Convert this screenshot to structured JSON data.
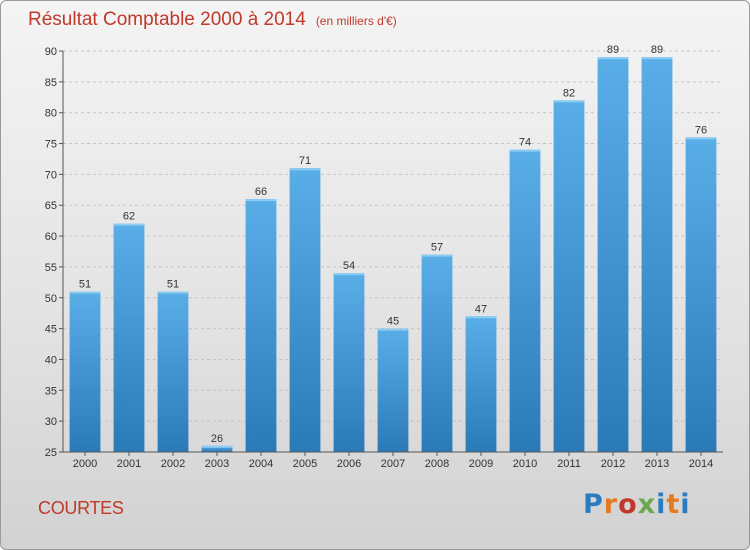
{
  "header": {
    "title": "Résultat Comptable 2000 à 2014",
    "subtitle": "(en milliers d'€)"
  },
  "footer": {
    "place": "COURTES",
    "logo": "Proxiti",
    "logo_colors": [
      "#2c7bbf",
      "#e57a1f",
      "#c0392b",
      "#6aa84f",
      "#2c7bbf",
      "#e57a1f",
      "#2c7bbf"
    ]
  },
  "chart_data": {
    "type": "bar",
    "title": "Résultat Comptable 2000 à 2014",
    "subtitle": "(en milliers d'€)",
    "categories": [
      "2000",
      "2001",
      "2002",
      "2003",
      "2004",
      "2005",
      "2006",
      "2007",
      "2008",
      "2009",
      "2010",
      "2011",
      "2012",
      "2013",
      "2014"
    ],
    "values": [
      51,
      62,
      51,
      26,
      66,
      71,
      54,
      45,
      57,
      47,
      74,
      82,
      89,
      89,
      76
    ],
    "xlabel": "",
    "ylabel": "",
    "ylim": [
      25,
      90
    ],
    "yticks": [
      25,
      30,
      35,
      40,
      45,
      50,
      55,
      60,
      65,
      70,
      75,
      80,
      85,
      90
    ],
    "grid": "horizontal dashed",
    "bar_color_top": "#5aaee8",
    "bar_color_bottom": "#2a7ab8"
  }
}
